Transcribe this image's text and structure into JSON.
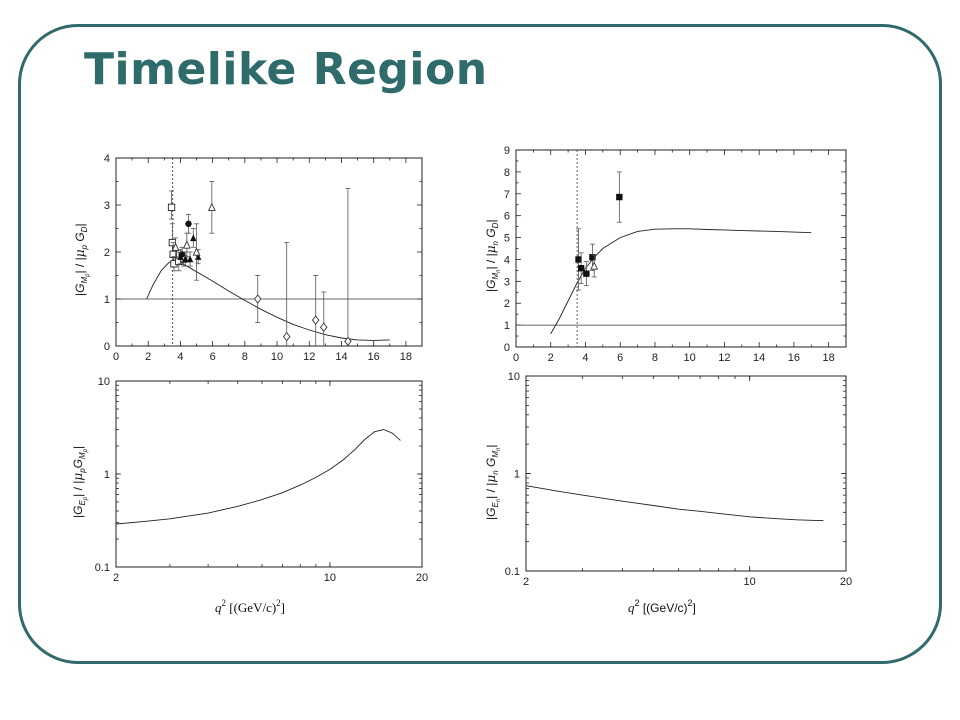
{
  "slide": {
    "title": "Timelike Region",
    "accent": "#2f6b6b"
  },
  "chart_data": [
    {
      "type": "scatter",
      "name": "proton-magnetic",
      "ylabel": "|G_Mp| / |μ_p G_D|",
      "xlim": [
        0,
        19
      ],
      "ylim": [
        0,
        4
      ],
      "xticks": [
        0,
        2,
        4,
        6,
        8,
        10,
        12,
        14,
        16,
        18
      ],
      "yticks": [
        0,
        1,
        2,
        3,
        4
      ],
      "threshold_x": 3.52,
      "reference_y": 1,
      "curve": {
        "x": [
          1.9,
          2.3,
          2.8,
          3.3,
          3.8,
          4.3,
          5,
          6,
          7,
          8,
          9,
          10,
          11,
          12,
          13,
          14,
          15,
          16,
          17
        ],
        "y": [
          1.0,
          1.3,
          1.6,
          1.78,
          1.8,
          1.72,
          1.58,
          1.38,
          1.17,
          0.97,
          0.78,
          0.61,
          0.46,
          0.34,
          0.24,
          0.17,
          0.13,
          0.12,
          0.13
        ]
      },
      "series": [
        {
          "marker": "open-square",
          "points": [
            {
              "x": 3.45,
              "y": 2.95,
              "lo": 2.7,
              "hi": 3.3
            },
            {
              "x": 3.5,
              "y": 2.2,
              "lo": 1.9,
              "hi": 2.6
            },
            {
              "x": 3.55,
              "y": 1.95,
              "lo": 1.7,
              "hi": 2.2
            },
            {
              "x": 3.6,
              "y": 1.75,
              "lo": 1.6,
              "hi": 1.9
            },
            {
              "x": 3.9,
              "y": 1.8,
              "lo": 1.6,
              "hi": 2.0
            },
            {
              "x": 4.2,
              "y": 1.85,
              "lo": 1.7,
              "hi": 2.0
            }
          ]
        },
        {
          "marker": "filled-circle",
          "points": [
            {
              "x": 4.5,
              "y": 2.6,
              "lo": 2.4,
              "hi": 2.8
            },
            {
              "x": 4.1,
              "y": 1.95,
              "lo": 1.8,
              "hi": 2.1
            }
          ]
        },
        {
          "marker": "filled-triangle",
          "points": [
            {
              "x": 4.0,
              "y": 1.9,
              "lo": 1.75,
              "hi": 2.05
            },
            {
              "x": 4.3,
              "y": 1.85,
              "lo": 1.7,
              "hi": 2.0
            },
            {
              "x": 4.6,
              "y": 1.85,
              "lo": 1.7,
              "hi": 2.0
            },
            {
              "x": 4.8,
              "y": 2.3,
              "lo": 2.1,
              "hi": 2.5
            },
            {
              "x": 5.1,
              "y": 1.9,
              "lo": 1.75,
              "hi": 2.05
            }
          ]
        },
        {
          "marker": "open-triangle",
          "points": [
            {
              "x": 3.7,
              "y": 2.1,
              "lo": 1.9,
              "hi": 2.3
            },
            {
              "x": 4.4,
              "y": 2.15,
              "lo": 1.9,
              "hi": 2.4
            },
            {
              "x": 5.0,
              "y": 2.0,
              "lo": 1.4,
              "hi": 2.6
            },
            {
              "x": 5.95,
              "y": 2.95,
              "lo": 2.4,
              "hi": 3.5
            }
          ]
        },
        {
          "marker": "open-diamond",
          "points": [
            {
              "x": 8.8,
              "y": 1.0,
              "lo": 0.5,
              "hi": 1.5
            },
            {
              "x": 10.6,
              "y": 0.2,
              "lo": 0.0,
              "hi": 2.2
            },
            {
              "x": 12.4,
              "y": 0.55,
              "lo": 0.0,
              "hi": 1.5
            },
            {
              "x": 12.9,
              "y": 0.4,
              "lo": 0.0,
              "hi": 1.15
            },
            {
              "x": 14.4,
              "y": 0.1,
              "lo": 0.0,
              "hi": 3.35
            }
          ]
        }
      ]
    },
    {
      "type": "scatter",
      "name": "neutron-magnetic",
      "ylabel": "|G_Mn| / |μ_n G_D|",
      "xlim": [
        0,
        19
      ],
      "ylim": [
        0,
        9
      ],
      "xticks": [
        0,
        2,
        4,
        6,
        8,
        10,
        12,
        14,
        16,
        18
      ],
      "yticks": [
        0,
        1,
        2,
        3,
        4,
        5,
        6,
        7,
        8,
        9
      ],
      "threshold_x": 3.52,
      "reference_y": 1,
      "curve": {
        "x": [
          2,
          2.5,
          3,
          3.5,
          4,
          4.5,
          5,
          6,
          7,
          8,
          9,
          10,
          11,
          12,
          13,
          14,
          15,
          16,
          17
        ],
        "y": [
          0.6,
          1.3,
          2.1,
          2.9,
          3.6,
          4.1,
          4.5,
          5.0,
          5.28,
          5.38,
          5.4,
          5.4,
          5.37,
          5.35,
          5.32,
          5.3,
          5.28,
          5.25,
          5.22
        ]
      },
      "series": [
        {
          "marker": "filled-square",
          "points": [
            {
              "x": 3.6,
              "y": 4.0,
              "lo": 2.6,
              "hi": 5.4
            },
            {
              "x": 3.75,
              "y": 3.6,
              "lo": 2.9,
              "hi": 4.3
            },
            {
              "x": 4.05,
              "y": 3.35,
              "lo": 2.8,
              "hi": 3.9
            },
            {
              "x": 4.4,
              "y": 4.1,
              "lo": 3.5,
              "hi": 4.7
            },
            {
              "x": 5.95,
              "y": 6.85,
              "lo": 5.7,
              "hi": 8.0
            }
          ]
        },
        {
          "marker": "open-triangle",
          "points": [
            {
              "x": 4.5,
              "y": 3.7,
              "lo": 3.2,
              "hi": 4.2
            }
          ]
        }
      ]
    },
    {
      "type": "line",
      "name": "proton-ratio",
      "ylabel": "|G_Ep| / |μ_p G_Mp|",
      "xlabel": "q² [(GeV/c)²]",
      "xscale": "log",
      "yscale": "log",
      "xlim": [
        2,
        20
      ],
      "ylim": [
        0.1,
        10
      ],
      "xticks": [
        2,
        10,
        20
      ],
      "yticks": [
        0.1,
        1,
        10
      ],
      "curve": {
        "x": [
          2,
          2.5,
          3,
          4,
          5,
          6,
          7,
          8,
          9,
          10,
          11,
          12,
          13,
          14,
          15,
          16,
          17
        ],
        "y": [
          0.29,
          0.31,
          0.33,
          0.38,
          0.45,
          0.53,
          0.63,
          0.76,
          0.92,
          1.12,
          1.4,
          1.8,
          2.35,
          2.85,
          3.0,
          2.75,
          2.3
        ]
      }
    },
    {
      "type": "line",
      "name": "neutron-ratio",
      "ylabel": "|G_En| / |μ_n G_Mn|",
      "xlabel": "q² [(GeV/c)²]",
      "xscale": "log",
      "yscale": "log",
      "xlim": [
        2,
        20
      ],
      "ylim": [
        0.1,
        10
      ],
      "xticks": [
        2,
        10,
        20
      ],
      "yticks": [
        0.1,
        1,
        10
      ],
      "curve": {
        "x": [
          2,
          2.5,
          3,
          4,
          5,
          6,
          7,
          8,
          10,
          12,
          14,
          16,
          17
        ],
        "y": [
          0.75,
          0.66,
          0.6,
          0.52,
          0.47,
          0.43,
          0.41,
          0.39,
          0.36,
          0.345,
          0.335,
          0.33,
          0.33
        ]
      }
    }
  ]
}
